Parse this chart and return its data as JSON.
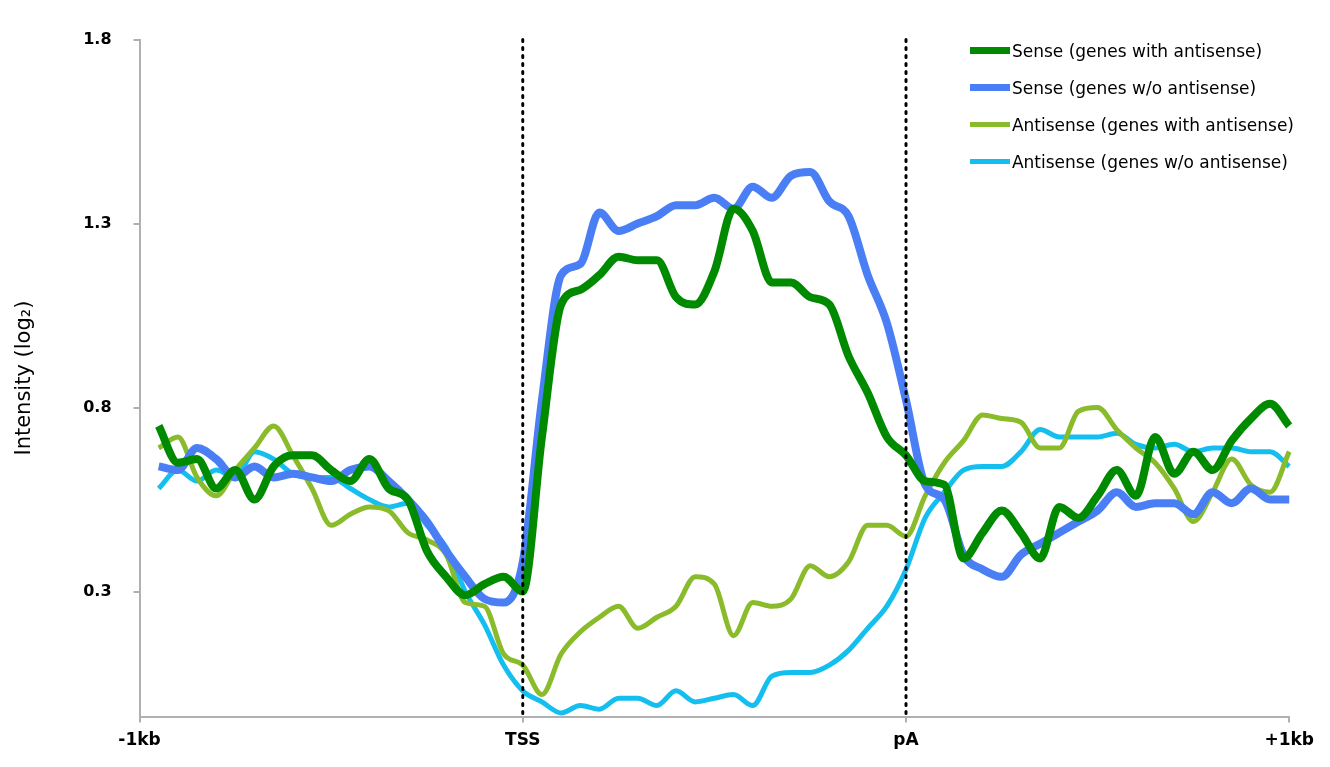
{
  "chart_data": {
    "type": "line",
    "ylabel": "Intensity (log₂)",
    "categories": [
      "-1kb",
      null,
      null,
      null,
      null,
      null,
      null,
      null,
      null,
      null,
      null,
      null,
      null,
      null,
      null,
      null,
      null,
      null,
      null,
      null,
      "TSS",
      null,
      null,
      null,
      null,
      null,
      null,
      null,
      null,
      null,
      null,
      null,
      null,
      null,
      null,
      null,
      null,
      null,
      null,
      null,
      "pA",
      null,
      null,
      null,
      null,
      null,
      null,
      null,
      null,
      null,
      null,
      null,
      null,
      null,
      null,
      null,
      null,
      null,
      null,
      null,
      "+1kb"
    ],
    "ylim": [
      -0.04,
      1.8
    ],
    "yticks": [
      0.3,
      0.8,
      1.3,
      1.8
    ],
    "grid": false,
    "legend": "top right",
    "marker": "none",
    "line_style": "solid",
    "ref_lines": [
      {
        "axis": "x",
        "value": "TSS",
        "color": "#000000",
        "line_style": "dotted"
      },
      {
        "axis": "x",
        "value": "pA",
        "color": "#000000",
        "line_style": "dotted"
      }
    ],
    "series": [
      {
        "name": "Sense (genes with antisense)",
        "color": "#008a00",
        "values": [
          null,
          0.75,
          0.65,
          0.66,
          0.58,
          0.63,
          0.55,
          0.64,
          0.67,
          0.67,
          0.63,
          0.6,
          0.66,
          0.58,
          0.55,
          0.41,
          0.34,
          0.29,
          0.32,
          0.34,
          0.3,
          0.72,
          1.08,
          1.12,
          1.16,
          1.21,
          1.2,
          1.2,
          1.1,
          1.08,
          1.17,
          1.34,
          1.28,
          1.14,
          1.14,
          1.1,
          1.08,
          0.94,
          0.84,
          0.72,
          0.67,
          0.6,
          0.59,
          0.39,
          0.46,
          0.52,
          0.46,
          0.39,
          0.53,
          0.5,
          0.56,
          0.63,
          0.56,
          0.72,
          0.62,
          0.68,
          0.63,
          0.71,
          0.77,
          0.81,
          0.75
        ]
      },
      {
        "name": "Sense (genes w/o antisense)",
        "color": "#4a7ef5",
        "values": [
          null,
          0.64,
          0.63,
          0.69,
          0.66,
          0.61,
          0.64,
          0.61,
          0.62,
          0.61,
          0.6,
          0.63,
          0.64,
          0.6,
          0.55,
          0.49,
          0.41,
          0.34,
          0.28,
          0.27,
          0.38,
          0.82,
          1.16,
          1.19,
          1.33,
          1.28,
          1.3,
          1.32,
          1.35,
          1.35,
          1.37,
          1.34,
          1.4,
          1.37,
          1.43,
          1.44,
          1.36,
          1.32,
          1.16,
          1.03,
          0.82,
          0.59,
          0.55,
          0.4,
          0.36,
          0.34,
          0.4,
          0.43,
          0.46,
          0.49,
          0.52,
          0.57,
          0.53,
          0.54,
          0.54,
          0.51,
          0.57,
          0.54,
          0.58,
          0.55,
          0.55
        ]
      },
      {
        "name": "Antisense (genes with antisense)",
        "color": "#8abb2a",
        "values": [
          null,
          0.69,
          0.72,
          0.61,
          0.56,
          0.63,
          0.69,
          0.75,
          0.67,
          0.58,
          0.48,
          0.51,
          0.53,
          0.52,
          0.46,
          0.44,
          0.4,
          0.27,
          0.26,
          0.13,
          0.1,
          0.02,
          0.13,
          0.19,
          0.23,
          0.26,
          0.2,
          0.23,
          0.26,
          0.34,
          0.32,
          0.18,
          0.27,
          0.26,
          0.28,
          0.37,
          0.34,
          0.38,
          0.48,
          0.48,
          0.45,
          0.56,
          0.65,
          0.71,
          0.78,
          0.77,
          0.76,
          0.69,
          0.69,
          0.79,
          0.8,
          0.74,
          0.69,
          0.65,
          0.58,
          0.49,
          0.57,
          0.66,
          0.59,
          0.57,
          0.68
        ]
      },
      {
        "name": "Antisense (genes w/o antisense)",
        "color": "#14bff0",
        "values": [
          null,
          0.58,
          0.63,
          0.6,
          0.63,
          0.61,
          0.68,
          0.66,
          0.62,
          0.61,
          0.61,
          0.58,
          0.55,
          0.53,
          0.54,
          0.48,
          0.42,
          0.3,
          0.21,
          0.1,
          0.03,
          0.0,
          -0.03,
          -0.01,
          -0.02,
          0.01,
          0.01,
          -0.01,
          0.03,
          0.0,
          0.01,
          0.02,
          -0.01,
          0.07,
          0.08,
          0.08,
          0.1,
          0.14,
          0.2,
          0.26,
          0.36,
          0.5,
          0.57,
          0.63,
          0.64,
          0.64,
          0.68,
          0.74,
          0.72,
          0.72,
          0.72,
          0.73,
          0.7,
          0.69,
          0.7,
          0.68,
          0.69,
          0.69,
          0.68,
          0.68,
          0.64
        ]
      }
    ]
  }
}
